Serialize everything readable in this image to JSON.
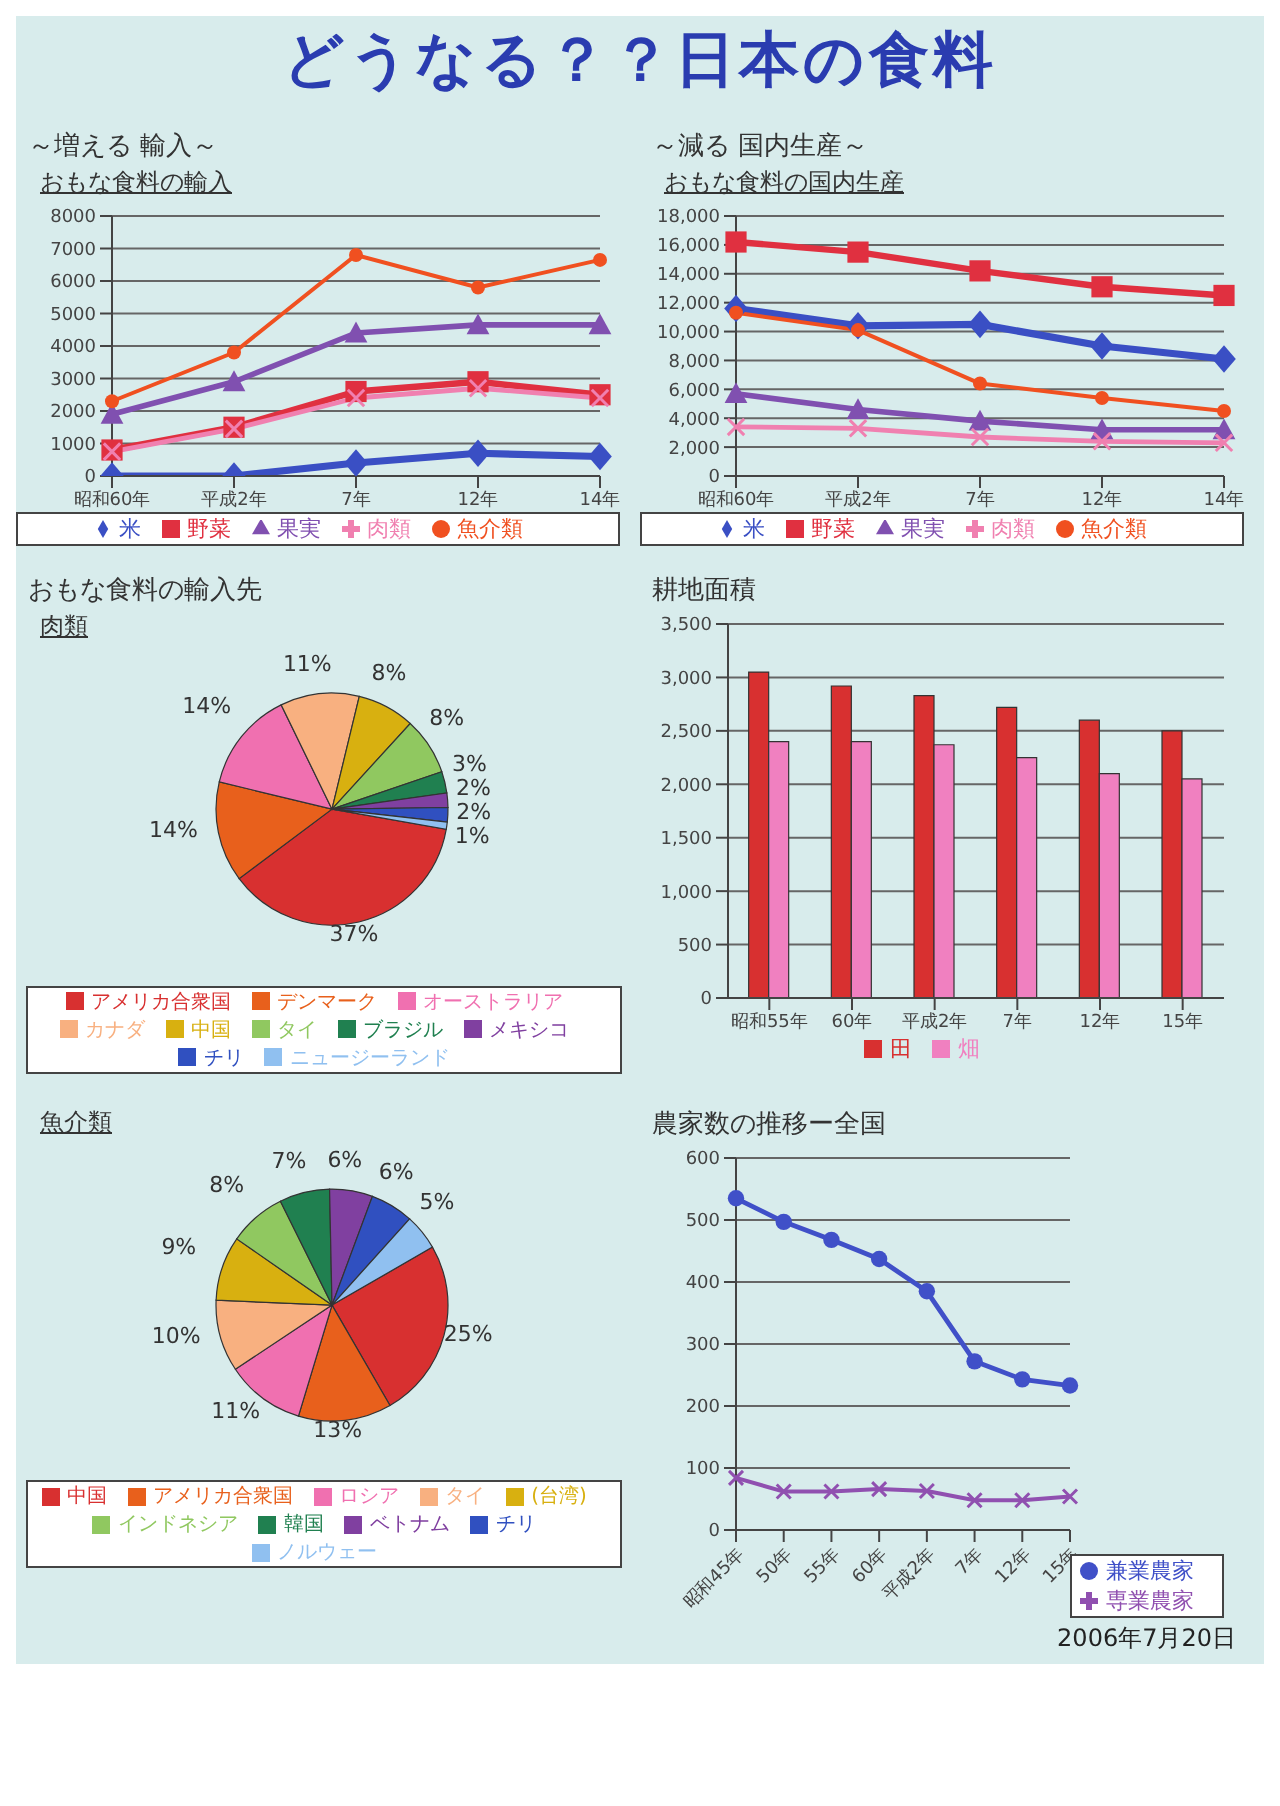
{
  "chart_data": [
    {
      "type": "other",
      "title": "どうなる？？日本の食料"
    },
    {
      "type": "line",
      "title": "～増える 輸入～",
      "subtitle": "おもな食料の輸入",
      "categories": [
        "昭和60年",
        "平成2年",
        "7年",
        "12年",
        "14年"
      ],
      "series": [
        {
          "name": "米",
          "color": "#3a4fc4",
          "marker": "diamond",
          "values": [
            0,
            0,
            400,
            700,
            600
          ]
        },
        {
          "name": "野菜",
          "color": "#e03040",
          "marker": "square",
          "values": [
            800,
            1500,
            2600,
            2900,
            2500
          ]
        },
        {
          "name": "果実",
          "color": "#8050b0",
          "marker": "triangle",
          "values": [
            1900,
            2900,
            4400,
            4650,
            4650
          ]
        },
        {
          "name": "肉類",
          "color": "#f080b0",
          "marker": "cross",
          "values": [
            750,
            1450,
            2400,
            2700,
            2400
          ]
        },
        {
          "name": "魚介類",
          "color": "#f05020",
          "marker": "circle",
          "values": [
            2300,
            3800,
            6800,
            5800,
            6650
          ]
        }
      ],
      "ylim": [
        0,
        8000
      ],
      "yticks": [
        0,
        1000,
        2000,
        3000,
        4000,
        5000,
        6000,
        7000,
        8000
      ],
      "grid": "y",
      "legend": "bottom"
    },
    {
      "type": "line",
      "title": "～減る 国内生産～",
      "subtitle": "おもな食料の国内生産",
      "categories": [
        "昭和60年",
        "平成2年",
        "7年",
        "12年",
        "14年"
      ],
      "series": [
        {
          "name": "米",
          "color": "#3a4fc4",
          "marker": "diamond",
          "values": [
            11600,
            10400,
            10500,
            9000,
            8100
          ]
        },
        {
          "name": "野菜",
          "color": "#e03040",
          "marker": "square",
          "values": [
            16200,
            15500,
            14200,
            13100,
            12500
          ]
        },
        {
          "name": "果実",
          "color": "#8050b0",
          "marker": "triangle",
          "values": [
            5700,
            4600,
            3800,
            3200,
            3200
          ]
        },
        {
          "name": "肉類",
          "color": "#f080b0",
          "marker": "cross",
          "values": [
            3400,
            3300,
            2700,
            2400,
            2300
          ]
        },
        {
          "name": "魚介類",
          "color": "#f05020",
          "marker": "circle",
          "values": [
            11300,
            10100,
            6400,
            5400,
            4500
          ]
        }
      ],
      "ylim": [
        0,
        18000
      ],
      "yticks": [
        0,
        {
          "value": 2000,
          "label": "2,000"
        },
        {
          "value": 4000,
          "label": "4,000"
        },
        {
          "value": 6000,
          "label": "6,000"
        },
        {
          "value": 8000,
          "label": "8,000"
        },
        {
          "value": 10000,
          "label": "10,000"
        },
        {
          "value": 12000,
          "label": "12,000"
        },
        {
          "value": 14000,
          "label": "14,000"
        },
        {
          "value": 16000,
          "label": "16,000"
        },
        {
          "value": 18000,
          "label": "18,000"
        }
      ],
      "grid": "y",
      "legend": "bottom"
    },
    {
      "type": "pie",
      "title": "おもな食料の輸入先",
      "subtitle": "肉類",
      "categories": [
        "アメリカ合衆国",
        "デンマーク",
        "オーストラリア",
        "カナダ",
        "中国",
        "タイ",
        "ブラジル",
        "メキシコ",
        "チリ",
        "ニュージーランド"
      ],
      "values": [
        37,
        14,
        14,
        11,
        8,
        8,
        3,
        2,
        2,
        1
      ],
      "value_labels": [
        "37%",
        "14%",
        "14%",
        "11%",
        "8%",
        "8%",
        "3%",
        "2%",
        "2%",
        "1%"
      ],
      "colors": [
        "#d83030",
        "#e8601c",
        "#f070b0",
        "#f8b080",
        "#d8b010",
        "#90c860",
        "#208050",
        "#8040a0",
        "#3050c0",
        "#90c0f0"
      ],
      "legend": "bottom"
    },
    {
      "type": "bar",
      "title": "耕地面積",
      "categories": [
        "昭和55年",
        "60年",
        "平成2年",
        "7年",
        "12年",
        "15年"
      ],
      "series": [
        {
          "name": "田",
          "color": "#d83030",
          "values": [
            3050,
            2920,
            2830,
            2720,
            2600,
            2500
          ]
        },
        {
          "name": "畑",
          "color": "#f080c0",
          "values": [
            2400,
            2400,
            2370,
            2250,
            2100,
            2050
          ]
        }
      ],
      "ylim": [
        0,
        3500
      ],
      "yticks": [
        0,
        500,
        {
          "value": 1000,
          "label": "1,000"
        },
        {
          "value": 1500,
          "label": "1,500"
        },
        {
          "value": 2000,
          "label": "2,000"
        },
        {
          "value": 2500,
          "label": "2,500"
        },
        {
          "value": 3000,
          "label": "3,000"
        },
        {
          "value": 3500,
          "label": "3,500"
        }
      ],
      "grid": "y",
      "legend": "bottom"
    },
    {
      "type": "pie",
      "subtitle": "魚介類",
      "categories": [
        "中国",
        "アメリカ合衆国",
        "ロシア",
        "タイ",
        "(台湾)",
        "インドネシア",
        "韓国",
        "ベトナム",
        "チリ",
        "ノルウェー"
      ],
      "values": [
        25,
        13,
        11,
        10,
        9,
        8,
        7,
        6,
        6,
        5
      ],
      "value_labels": [
        "25%",
        "13%",
        "11%",
        "10%",
        "9%",
        "8%",
        "7%",
        "6%",
        "6%",
        "5%"
      ],
      "colors": [
        "#d83030",
        "#e8601c",
        "#f070b0",
        "#f8b080",
        "#d8b010",
        "#90c860",
        "#208050",
        "#8040a0",
        "#3050c0",
        "#90c0f0"
      ],
      "legend": "bottom"
    },
    {
      "type": "line",
      "title": "農家数の推移ー全国",
      "categories": [
        "昭和45年",
        "50年",
        "55年",
        "60年",
        "平成2年",
        "7年",
        "12年",
        "15年"
      ],
      "series": [
        {
          "name": "兼業農家",
          "color": "#4050c8",
          "marker": "circle",
          "values": [
            535,
            497,
            468,
            437,
            385,
            272,
            243,
            233
          ]
        },
        {
          "name": "専業農家",
          "color": "#9050b0",
          "marker": "cross",
          "values": [
            84,
            62,
            62,
            66,
            63,
            48,
            48,
            54
          ]
        }
      ],
      "ylim": [
        0,
        600
      ],
      "yticks": [
        0,
        100,
        200,
        300,
        400,
        500,
        600
      ],
      "grid": "y",
      "legend": "bottom right",
      "annotations": [
        "2006年7月20日"
      ]
    }
  ]
}
